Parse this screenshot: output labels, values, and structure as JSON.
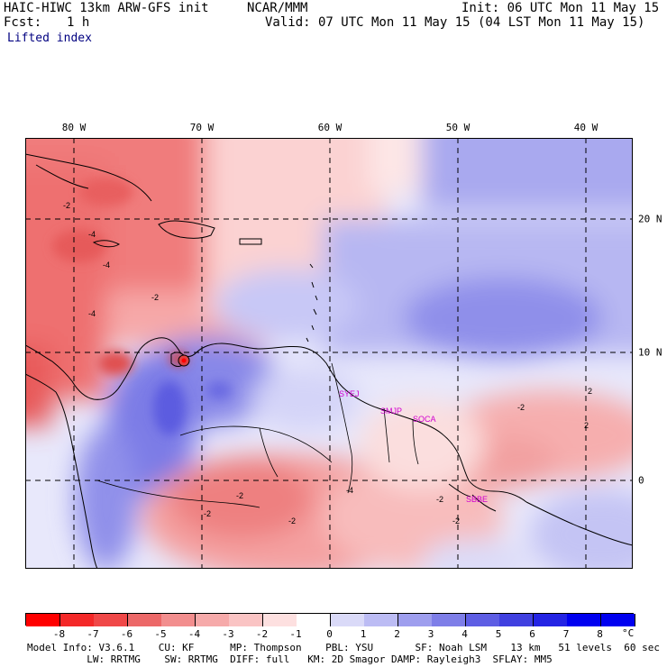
{
  "header": {
    "model": "HAIC-HIWC 13km ARW-GFS init",
    "org": "NCAR/MMM",
    "init": "Init: 06 UTC Mon 11 May 15",
    "fcst_label": "Fcst:",
    "fcst_value": "1 h",
    "valid": "Valid: 07 UTC Mon 11 May 15 (04 LST Mon 11 May 15)",
    "field": "Lifted index"
  },
  "map": {
    "lon_labels": [
      "80 W",
      "70 W",
      "60 W",
      "50 W",
      "40 W"
    ],
    "lat_labels": [
      "20 N",
      "10 N",
      "0"
    ],
    "stations": [
      "SYEJ",
      "SMJP",
      "SOCA",
      "SBBE"
    ],
    "contour_labels": [
      "-2",
      "-4",
      "-4",
      "-2",
      "-4",
      "2",
      "-2",
      "2",
      "-2",
      "-2",
      "-2",
      "-2",
      "-2",
      "-4"
    ],
    "colors": {
      "land_outline": "#000000",
      "grid": "#000000",
      "station_text": "#d000d0"
    }
  },
  "colorbar": {
    "ticks": [
      "-8",
      "-7",
      "-6",
      "-5",
      "-4",
      "-3",
      "-2",
      "-1",
      "0",
      "1",
      "2",
      "3",
      "4",
      "5",
      "6",
      "7",
      "8"
    ],
    "unit": "°C",
    "colors": [
      "#ff0000",
      "#f42828",
      "#f04848",
      "#ec6868",
      "#f28e8e",
      "#f6aaaa",
      "#fac4c4",
      "#fde0e0",
      "#ffffff",
      "#dadaf8",
      "#bcbcf4",
      "#9e9eee",
      "#7e7ee8",
      "#5e5ee4",
      "#4040e0",
      "#2424e4",
      "#0000f0"
    ]
  },
  "footer": {
    "line1": "Model Info: V3.6.1    CU: KF      MP: Thompson    PBL: YSU       SF: Noah LSM    13 km   51 levels  60 sec",
    "line2": "          LW: RRTMG    SW: RRTMG  DIFF: full   KM: 2D Smagor DAMP: Rayleigh3  SFLAY: MM5"
  }
}
